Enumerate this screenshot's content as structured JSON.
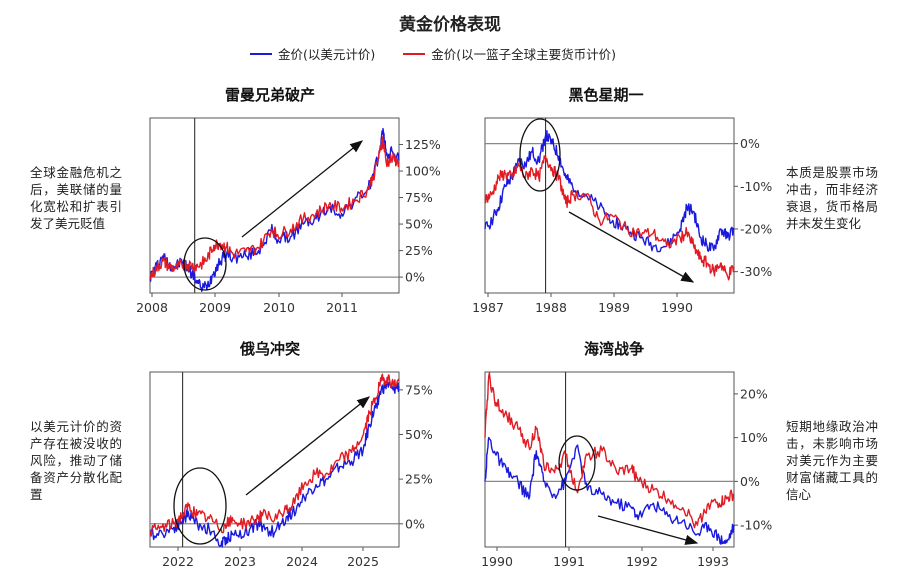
{
  "title": "黄金价格表现",
  "legend": [
    {
      "label": "金价(以美元计价)",
      "color": "#1a1adf"
    },
    {
      "label": "金价(以一篮子全球主要货币计价)",
      "color": "#e01b24"
    }
  ],
  "notes": [
    "全球金融危机之后，美联储的量化宽松和扩表引发了美元贬值",
    "本质是股票市场冲击，而非经济衰退，货币格局并未发生变化",
    "以美元计价的资产存在被没收的风险，推动了储备资产分散化配置",
    "短期地缘政治冲击，未影响市场对美元作为主要财富储藏工具的信心"
  ],
  "chart_data": [
    {
      "type": "line",
      "title": "雷曼兄弟破产",
      "x_ticks": [
        "2008",
        "2009",
        "2010",
        "2011"
      ],
      "x_range": [
        2008.0,
        2011.9
      ],
      "y_ticks": [
        "0%",
        "25%",
        "50%",
        "75%",
        "100%",
        "125%"
      ],
      "y_range": [
        -15,
        150
      ],
      "event_x": 2008.7,
      "series": [
        {
          "name": "金价(以美元计价)",
          "color": "#1a1adf",
          "points": [
            [
              2008.0,
              0
            ],
            [
              2008.1,
              10
            ],
            [
              2008.2,
              20
            ],
            [
              2008.3,
              12
            ],
            [
              2008.4,
              10
            ],
            [
              2008.5,
              15
            ],
            [
              2008.6,
              8
            ],
            [
              2008.7,
              0
            ],
            [
              2008.8,
              -10
            ],
            [
              2008.9,
              -8
            ],
            [
              2009.0,
              5
            ],
            [
              2009.1,
              15
            ],
            [
              2009.2,
              22
            ],
            [
              2009.3,
              18
            ],
            [
              2009.5,
              20
            ],
            [
              2009.7,
              25
            ],
            [
              2009.9,
              45
            ],
            [
              2010.0,
              35
            ],
            [
              2010.2,
              38
            ],
            [
              2010.4,
              50
            ],
            [
              2010.6,
              55
            ],
            [
              2010.8,
              65
            ],
            [
              2011.0,
              60
            ],
            [
              2011.2,
              72
            ],
            [
              2011.4,
              82
            ],
            [
              2011.5,
              95
            ],
            [
              2011.6,
              120
            ],
            [
              2011.65,
              140
            ],
            [
              2011.7,
              115
            ],
            [
              2011.8,
              118
            ],
            [
              2011.9,
              110
            ]
          ]
        },
        {
          "name": "金价(以一篮子全球主要货币计价)",
          "color": "#e01b24",
          "points": [
            [
              2008.0,
              0
            ],
            [
              2008.1,
              8
            ],
            [
              2008.2,
              15
            ],
            [
              2008.3,
              10
            ],
            [
              2008.4,
              8
            ],
            [
              2008.5,
              12
            ],
            [
              2008.6,
              12
            ],
            [
              2008.7,
              10
            ],
            [
              2008.8,
              12
            ],
            [
              2008.9,
              18
            ],
            [
              2009.0,
              30
            ],
            [
              2009.1,
              32
            ],
            [
              2009.2,
              28
            ],
            [
              2009.3,
              22
            ],
            [
              2009.5,
              24
            ],
            [
              2009.7,
              28
            ],
            [
              2009.9,
              45
            ],
            [
              2010.0,
              40
            ],
            [
              2010.2,
              45
            ],
            [
              2010.4,
              55
            ],
            [
              2010.6,
              60
            ],
            [
              2010.8,
              68
            ],
            [
              2011.0,
              65
            ],
            [
              2011.2,
              72
            ],
            [
              2011.4,
              82
            ],
            [
              2011.5,
              95
            ],
            [
              2011.6,
              118
            ],
            [
              2011.65,
              130
            ],
            [
              2011.7,
              108
            ],
            [
              2011.8,
              112
            ],
            [
              2011.9,
              108
            ]
          ]
        }
      ]
    },
    {
      "type": "line",
      "title": "黑色星期一",
      "x_ticks": [
        "1987",
        "1988",
        "1989",
        "1990"
      ],
      "x_range": [
        1986.9,
        1990.6
      ],
      "y_ticks": [
        "0%",
        "-10%",
        "-20%",
        "-30%"
      ],
      "y_range": [
        -35,
        6
      ],
      "event_x": 1987.8,
      "series": [
        {
          "name": "金价(以美元计价)",
          "color": "#1a1adf",
          "points": [
            [
              1986.9,
              -20
            ],
            [
              1987.0,
              -18
            ],
            [
              1987.1,
              -15
            ],
            [
              1987.2,
              -10
            ],
            [
              1987.3,
              -8
            ],
            [
              1987.4,
              -4
            ],
            [
              1987.5,
              -5
            ],
            [
              1987.6,
              -2
            ],
            [
              1987.7,
              -4
            ],
            [
              1987.8,
              2
            ],
            [
              1987.9,
              0
            ],
            [
              1988.0,
              -3
            ],
            [
              1988.1,
              -8
            ],
            [
              1988.2,
              -10
            ],
            [
              1988.4,
              -12
            ],
            [
              1988.6,
              -15
            ],
            [
              1988.8,
              -18
            ],
            [
              1989.0,
              -20
            ],
            [
              1989.2,
              -22
            ],
            [
              1989.4,
              -24
            ],
            [
              1989.6,
              -24
            ],
            [
              1989.8,
              -20
            ],
            [
              1989.9,
              -15
            ],
            [
              1990.0,
              -16
            ],
            [
              1990.1,
              -22
            ],
            [
              1990.2,
              -24
            ],
            [
              1990.3,
              -25
            ],
            [
              1990.4,
              -20
            ],
            [
              1990.5,
              -22
            ],
            [
              1990.6,
              -20
            ]
          ]
        },
        {
          "name": "金价(以一篮子全球主要货币计价)",
          "color": "#e01b24",
          "points": [
            [
              1986.9,
              -13
            ],
            [
              1987.0,
              -12
            ],
            [
              1987.1,
              -8
            ],
            [
              1987.2,
              -7
            ],
            [
              1987.3,
              -8
            ],
            [
              1987.4,
              -5
            ],
            [
              1987.5,
              -8
            ],
            [
              1987.6,
              -6
            ],
            [
              1987.7,
              -8
            ],
            [
              1987.8,
              -3
            ],
            [
              1987.9,
              -6
            ],
            [
              1988.0,
              -8
            ],
            [
              1988.1,
              -14
            ],
            [
              1988.2,
              -12
            ],
            [
              1988.4,
              -12
            ],
            [
              1988.6,
              -18
            ],
            [
              1988.8,
              -17
            ],
            [
              1989.0,
              -20
            ],
            [
              1989.2,
              -21
            ],
            [
              1989.4,
              -21
            ],
            [
              1989.6,
              -24
            ],
            [
              1989.8,
              -22
            ],
            [
              1989.9,
              -21
            ],
            [
              1990.0,
              -24
            ],
            [
              1990.1,
              -27
            ],
            [
              1990.2,
              -28
            ],
            [
              1990.3,
              -30
            ],
            [
              1990.4,
              -28
            ],
            [
              1990.5,
              -31
            ],
            [
              1990.6,
              -29
            ]
          ]
        }
      ]
    },
    {
      "type": "line",
      "title": "俄乌冲突",
      "x_ticks": [
        "2022",
        "2023",
        "2024",
        "2025"
      ],
      "x_range": [
        2021.6,
        2025.8
      ],
      "y_ticks": [
        "0%",
        "25%",
        "50%",
        "75%"
      ],
      "y_range": [
        -13,
        85
      ],
      "event_x": 2022.15,
      "series": [
        {
          "name": "金价(以美元计价)",
          "color": "#1a1adf",
          "points": [
            [
              2021.6,
              -6
            ],
            [
              2021.8,
              -5
            ],
            [
              2022.0,
              -2
            ],
            [
              2022.15,
              2
            ],
            [
              2022.25,
              6
            ],
            [
              2022.4,
              0
            ],
            [
              2022.6,
              -3
            ],
            [
              2022.8,
              -12
            ],
            [
              2022.9,
              -8
            ],
            [
              2023.0,
              -6
            ],
            [
              2023.2,
              -5
            ],
            [
              2023.4,
              0
            ],
            [
              2023.5,
              -2
            ],
            [
              2023.7,
              -5
            ],
            [
              2023.9,
              4
            ],
            [
              2024.0,
              6
            ],
            [
              2024.2,
              15
            ],
            [
              2024.4,
              22
            ],
            [
              2024.6,
              25
            ],
            [
              2024.8,
              32
            ],
            [
              2025.0,
              35
            ],
            [
              2025.2,
              42
            ],
            [
              2025.3,
              55
            ],
            [
              2025.4,
              65
            ],
            [
              2025.5,
              75
            ],
            [
              2025.6,
              78
            ],
            [
              2025.7,
              75
            ],
            [
              2025.8,
              77
            ]
          ]
        },
        {
          "name": "金价(以一篮子全球主要货币计价)",
          "color": "#e01b24",
          "points": [
            [
              2021.6,
              -4
            ],
            [
              2021.8,
              -2
            ],
            [
              2022.0,
              0
            ],
            [
              2022.15,
              5
            ],
            [
              2022.25,
              10
            ],
            [
              2022.4,
              5
            ],
            [
              2022.6,
              3
            ],
            [
              2022.8,
              -3
            ],
            [
              2022.9,
              0
            ],
            [
              2023.0,
              2
            ],
            [
              2023.2,
              0
            ],
            [
              2023.4,
              3
            ],
            [
              2023.5,
              5
            ],
            [
              2023.7,
              2
            ],
            [
              2023.9,
              8
            ],
            [
              2024.0,
              10
            ],
            [
              2024.2,
              22
            ],
            [
              2024.4,
              28
            ],
            [
              2024.6,
              28
            ],
            [
              2024.8,
              36
            ],
            [
              2025.0,
              40
            ],
            [
              2025.2,
              50
            ],
            [
              2025.3,
              62
            ],
            [
              2025.4,
              70
            ],
            [
              2025.5,
              80
            ],
            [
              2025.6,
              82
            ],
            [
              2025.7,
              78
            ],
            [
              2025.8,
              80
            ]
          ]
        }
      ]
    },
    {
      "type": "line",
      "title": "海湾战争",
      "x_ticks": [
        "1990",
        "1991",
        "1992",
        "1993"
      ],
      "x_range": [
        1989.9,
        1993.3
      ],
      "y_ticks": [
        "20%",
        "10%",
        "0%",
        "-10%"
      ],
      "y_range": [
        -15,
        25
      ],
      "event_x": 1991.0,
      "series": [
        {
          "name": "金价(以美元计价)",
          "color": "#1a1adf",
          "points": [
            [
              1989.9,
              0
            ],
            [
              1989.95,
              10
            ],
            [
              1990.05,
              6
            ],
            [
              1990.2,
              2
            ],
            [
              1990.35,
              0
            ],
            [
              1990.5,
              -4
            ],
            [
              1990.6,
              7
            ],
            [
              1990.7,
              0
            ],
            [
              1990.85,
              -3
            ],
            [
              1991.0,
              0
            ],
            [
              1991.15,
              8
            ],
            [
              1991.3,
              -2
            ],
            [
              1991.5,
              -3
            ],
            [
              1991.7,
              -5
            ],
            [
              1991.9,
              -6
            ],
            [
              1992.0,
              -8
            ],
            [
              1992.2,
              -5
            ],
            [
              1992.4,
              -8
            ],
            [
              1992.6,
              -9
            ],
            [
              1992.8,
              -12
            ],
            [
              1992.95,
              -10
            ],
            [
              1993.1,
              -13
            ],
            [
              1993.2,
              -14
            ],
            [
              1993.3,
              -10
            ]
          ]
        },
        {
          "name": "金价(以一篮子全球主要货币计价)",
          "color": "#e01b24",
          "points": [
            [
              1989.9,
              10
            ],
            [
              1989.95,
              24
            ],
            [
              1990.05,
              18
            ],
            [
              1990.2,
              15
            ],
            [
              1990.35,
              12
            ],
            [
              1990.5,
              8
            ],
            [
              1990.6,
              12
            ],
            [
              1990.7,
              4
            ],
            [
              1990.85,
              2
            ],
            [
              1991.0,
              6
            ],
            [
              1991.15,
              -2
            ],
            [
              1991.3,
              6
            ],
            [
              1991.5,
              7
            ],
            [
              1991.7,
              2
            ],
            [
              1991.9,
              3
            ],
            [
              1992.0,
              0
            ],
            [
              1992.2,
              -2
            ],
            [
              1992.4,
              -4
            ],
            [
              1992.6,
              -6
            ],
            [
              1992.8,
              -10
            ],
            [
              1992.95,
              -5
            ],
            [
              1993.1,
              -5
            ],
            [
              1993.2,
              -4
            ],
            [
              1993.3,
              -3
            ]
          ]
        }
      ]
    }
  ]
}
